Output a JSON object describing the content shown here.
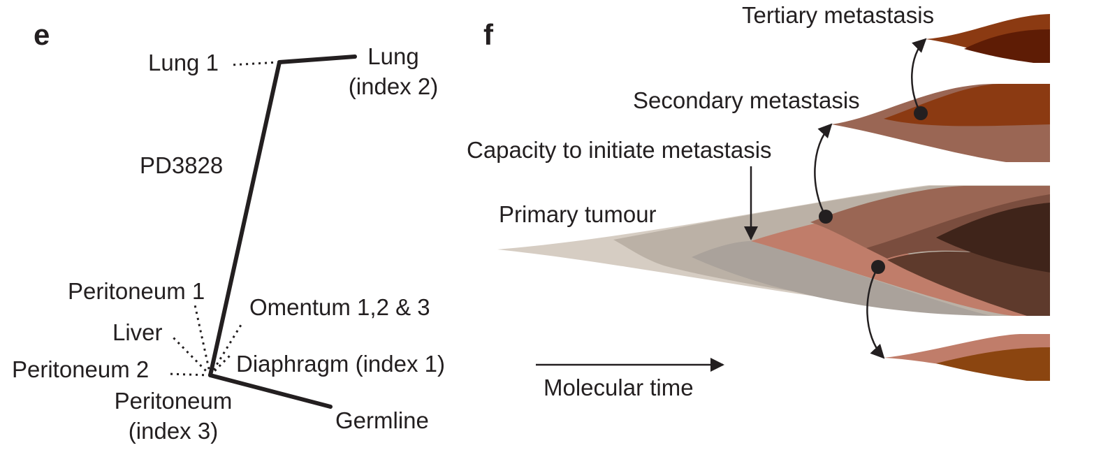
{
  "panel_e": {
    "letter": "e",
    "patient": "PD3828",
    "nodes": {
      "lung1": "Lung 1",
      "lung_index2": [
        "Lung",
        "(index 2)"
      ],
      "peritoneum1": "Peritoneum 1",
      "omentum": "Omentum 1,2 & 3",
      "liver": "Liver",
      "peritoneum2": "Peritoneum 2",
      "diaphragm": "Diaphragm (index 1)",
      "peritoneum_index3": [
        "Peritoneum",
        "(index 3)"
      ],
      "germline": "Germline"
    }
  },
  "panel_f": {
    "letter": "f",
    "labels": {
      "tertiary": "Tertiary metastasis",
      "secondary": "Secondary metastasis",
      "capacity": "Capacity to initiate metastasis",
      "primary": "Primary tumour",
      "time": "Molecular time"
    }
  },
  "colors": {
    "ink": "#231f20",
    "primary_light": "#d6cdc3",
    "primary_mid": "#bbb1a6",
    "primary_grey": "#aaa29b",
    "clone_salmon": "#c07d6a",
    "clone_brown": "#9a6654",
    "clone_dark": "#5e3a2c",
    "clone_darkest": "#3f241a",
    "met_orange": "#8b3a12",
    "met_dark": "#5e1c05"
  }
}
